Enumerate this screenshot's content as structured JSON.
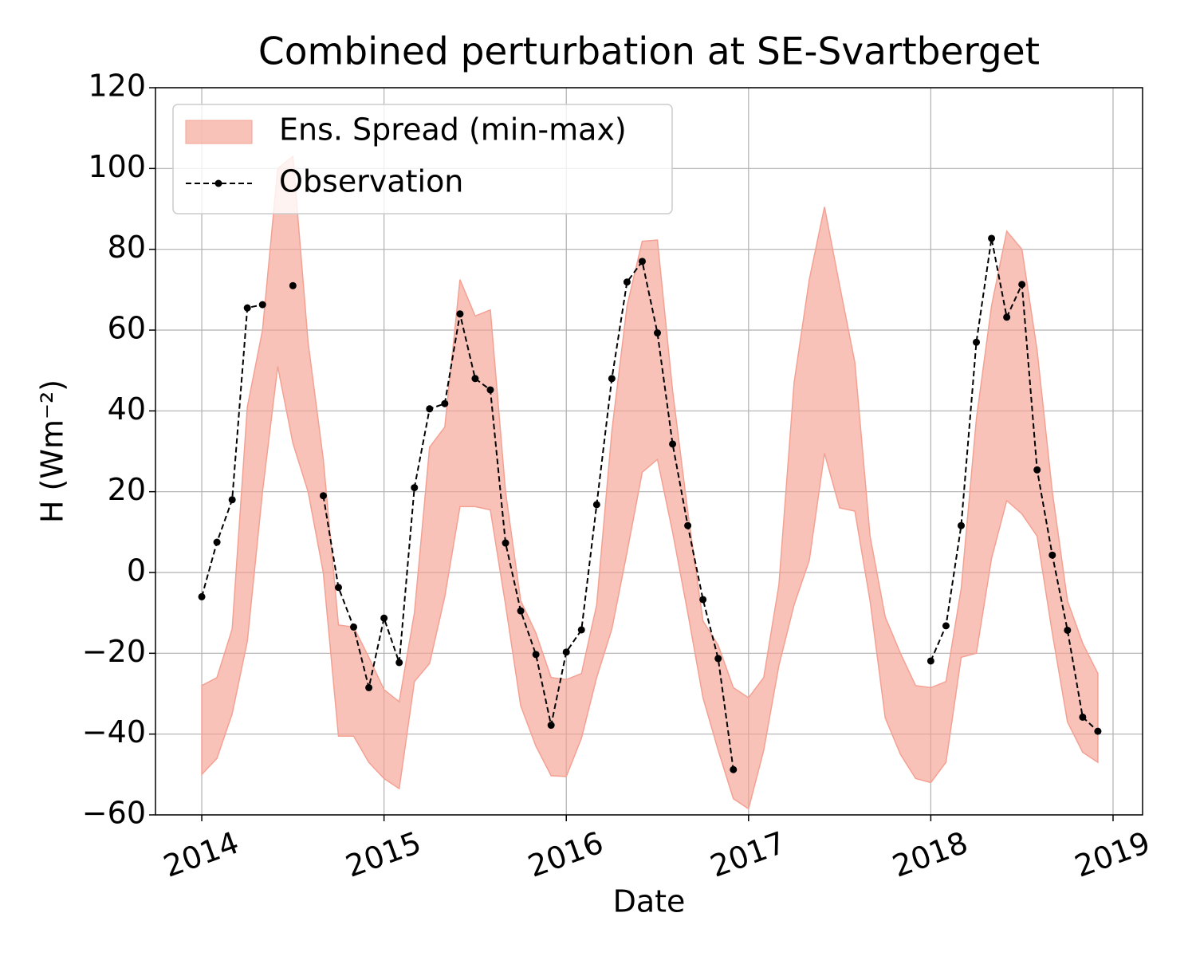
{
  "chart_data": {
    "type": "line",
    "title": "Combined perturbation at SE-Svartberget",
    "xlabel": "Date",
    "ylabel": "H  (Wm⁻²)",
    "x": [
      2014,
      2014.0833,
      2014.1667,
      2014.25,
      2014.3333,
      2014.4167,
      2014.5,
      2014.5833,
      2014.6667,
      2014.75,
      2014.8333,
      2014.9167,
      2015,
      2015.0833,
      2015.1667,
      2015.25,
      2015.3333,
      2015.4167,
      2015.5,
      2015.5833,
      2015.6667,
      2015.75,
      2015.8333,
      2015.9167,
      2016,
      2016.0833,
      2016.1667,
      2016.25,
      2016.3333,
      2016.4167,
      2016.5,
      2016.5833,
      2016.6667,
      2016.75,
      2016.8333,
      2016.9167,
      2017,
      2017.0833,
      2017.1667,
      2017.25,
      2017.3333,
      2017.4167,
      2017.5,
      2017.5833,
      2017.6667,
      2017.75,
      2017.8333,
      2017.9167,
      2018,
      2018.0833,
      2018.1667,
      2018.25,
      2018.3333,
      2018.4167,
      2018.5,
      2018.5833,
      2018.6667,
      2018.75,
      2018.8333,
      2018.9167
    ],
    "series": [
      {
        "name": "Ens. Spread (min-max)",
        "kind": "band",
        "color": "#f4a193",
        "lower": [
          -50,
          -46,
          -35,
          -17,
          20,
          51,
          32,
          20,
          0,
          -40.5,
          -40.5,
          -47,
          -51,
          -53.5,
          -27,
          -22.5,
          -6,
          16.3,
          16.3,
          15.5,
          -8,
          -33,
          -43,
          -50.3,
          -50.5,
          -41,
          -26,
          -14,
          5,
          24.8,
          28,
          10,
          -10,
          -31,
          -44,
          -56,
          -58.5,
          -44,
          -23,
          -8,
          3,
          29.5,
          16,
          15.2,
          -7,
          -36,
          -45,
          -51,
          -52,
          -47,
          -21,
          -20,
          3.5,
          17.8,
          14.5,
          9,
          -15,
          -37,
          -44.5,
          -47
        ],
        "upper": [
          -28,
          -26,
          -14,
          41,
          60,
          100,
          103,
          57,
          28,
          -13,
          -13.5,
          -21,
          -29,
          -32,
          -10,
          31,
          36,
          72.5,
          63.5,
          65,
          20,
          -7,
          -15,
          -26,
          -26.5,
          -25,
          -8,
          35,
          66,
          82,
          82.3,
          45,
          15,
          -12,
          -18,
          -28.5,
          -31,
          -26,
          -3,
          47,
          72.5,
          90.5,
          71,
          52,
          9,
          -11,
          -20,
          -28,
          -28.5,
          -27,
          -4,
          38,
          66,
          84.5,
          80,
          55,
          20,
          -7,
          -17.5,
          -25
        ]
      },
      {
        "name": "Observation",
        "kind": "line",
        "color": "#000000",
        "values": [
          -6,
          7.5,
          18,
          65.5,
          66.3,
          null,
          71,
          null,
          19,
          -3.7,
          -13.5,
          -28.5,
          -11.3,
          -22.3,
          21,
          40.5,
          41.8,
          64,
          48,
          45.2,
          7.3,
          -9.5,
          -20.3,
          -37.8,
          -19.7,
          -14.2,
          16.8,
          48,
          71.9,
          77,
          59.3,
          31.8,
          11.6,
          -6.7,
          -21.3,
          -48.8,
          null,
          null,
          null,
          null,
          null,
          null,
          null,
          null,
          null,
          null,
          null,
          null,
          -21.9,
          -13.2,
          11.6,
          57,
          82.7,
          63.2,
          71.3,
          25.4,
          4.3,
          -14.3,
          -35.8,
          -39.3
        ]
      }
    ],
    "xlim": [
      2013.746,
      2019.162
    ],
    "xticks": [
      2014,
      2015,
      2016,
      2017,
      2018,
      2019
    ],
    "ylim": [
      -60,
      120
    ],
    "yticks": [
      {
        "value": -60,
        "label": "−60"
      },
      {
        "value": -40,
        "label": "−40"
      },
      {
        "value": -20,
        "label": "−20"
      },
      0,
      20,
      40,
      60,
      80,
      100,
      120
    ],
    "grid": true,
    "legend": "upper left"
  }
}
